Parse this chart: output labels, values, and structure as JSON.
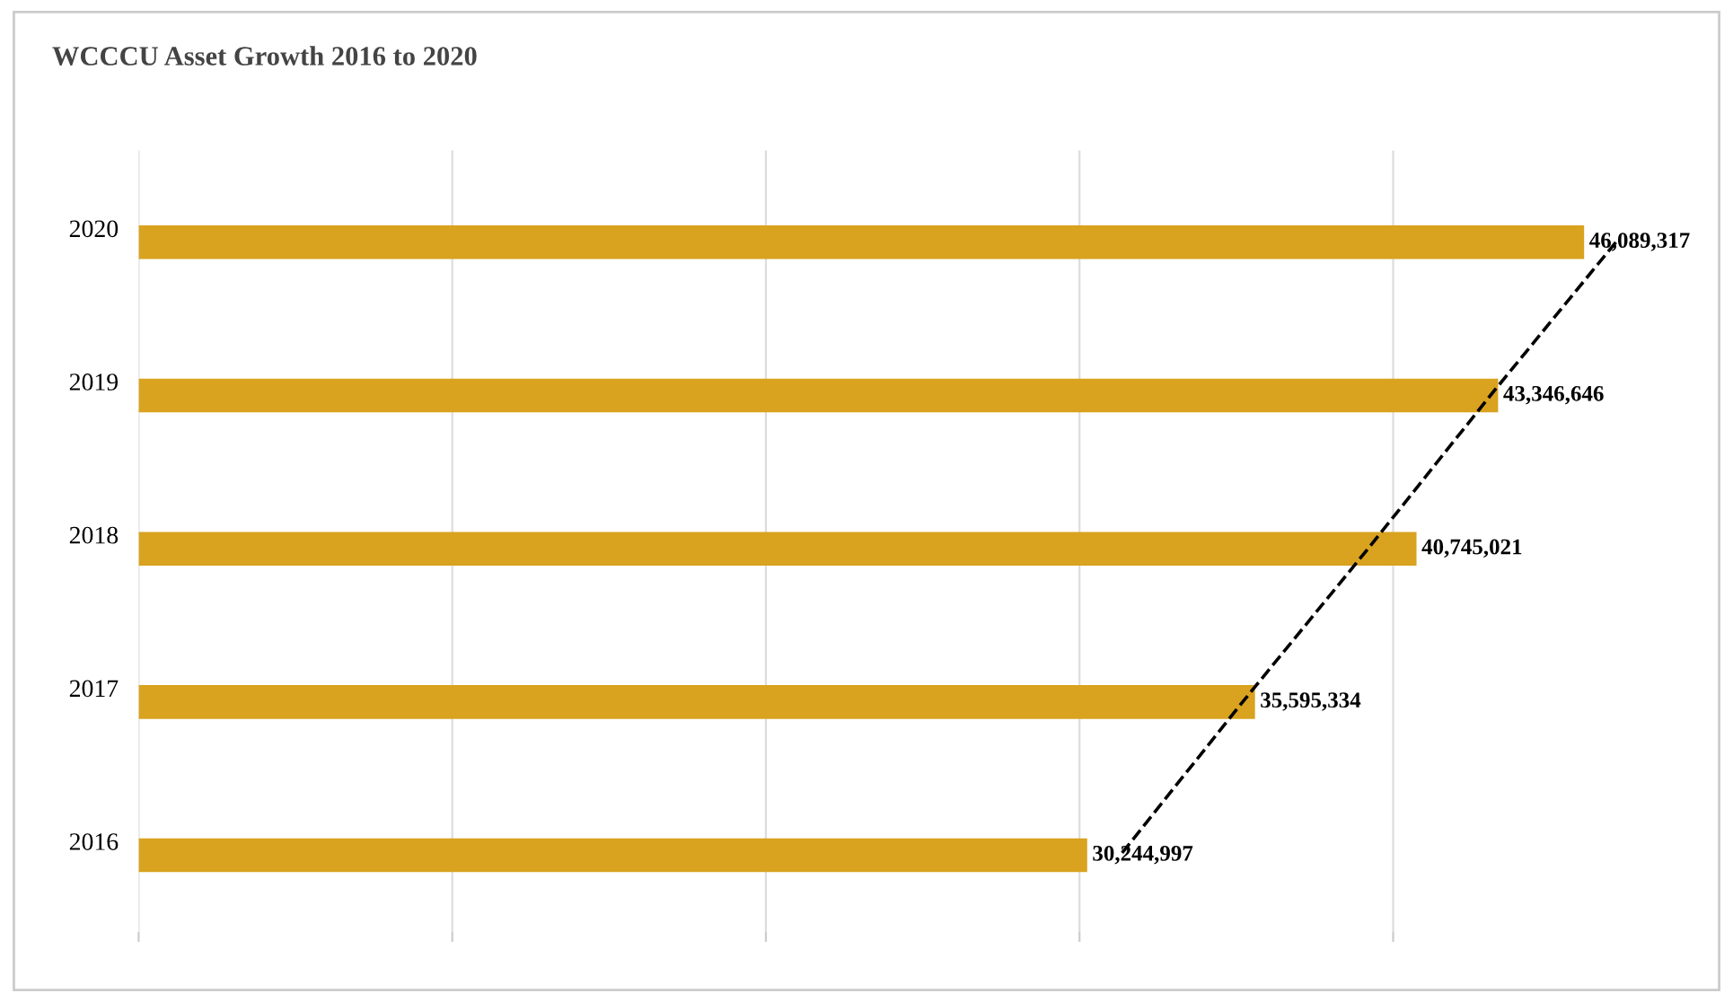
{
  "chart_data": {
    "type": "bar",
    "orientation": "horizontal",
    "title": "WCCCU Asset Growth 2016 to 2020",
    "categories": [
      "2020",
      "2019",
      "2018",
      "2017",
      "2016"
    ],
    "series": [
      {
        "color": "#d9a21f",
        "values": [
          46089317,
          43346646,
          40745021,
          35595334,
          30244997
        ],
        "value_labels": [
          "46,089,317",
          "43,346,646",
          "40,745,021",
          "35,595,334",
          "30,244,997"
        ]
      },
      {
        "type": "line",
        "color": "#000000",
        "line_style": "dashed",
        "values": [
          47100000,
          43100000,
          39200000,
          35200000,
          31300000
        ]
      }
    ],
    "grid": "x"
  }
}
